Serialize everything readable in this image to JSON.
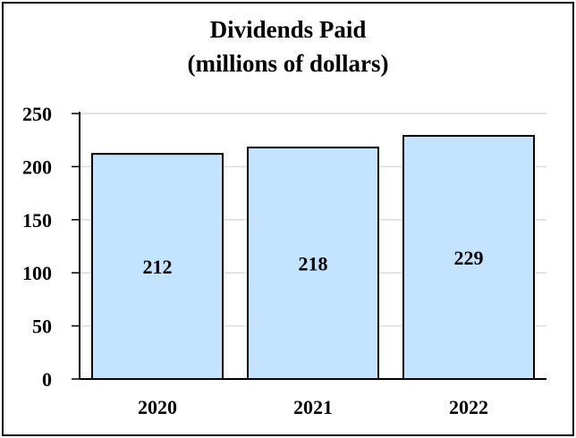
{
  "chart_data": {
    "type": "bar",
    "title_line1": "Dividends Paid",
    "title_line2": "(millions of dollars)",
    "categories": [
      "2020",
      "2021",
      "2022"
    ],
    "values": [
      212,
      218,
      229
    ],
    "value_labels": [
      "212",
      "218",
      "229"
    ],
    "ylim": [
      0,
      250
    ],
    "yticks": [
      "0",
      "50",
      "100",
      "150",
      "200",
      "250"
    ],
    "grid": true,
    "bar_color": "#c3e3ff",
    "bar_edge_color": "#000000",
    "grid_color": "#dcdcdc"
  }
}
